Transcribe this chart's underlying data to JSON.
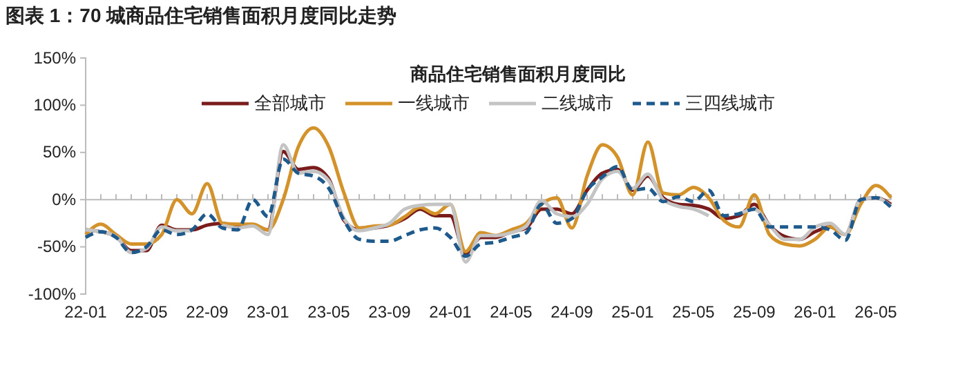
{
  "chart_data": {
    "type": "line",
    "title": "图表 1：70 城商品住宅销售面积月度同比走势",
    "subtitle": "商品住宅销售面积月度同比",
    "categories": [
      "22-01",
      null,
      null,
      null,
      "22-05",
      null,
      null,
      null,
      "22-09",
      null,
      null,
      null,
      "23-01",
      null,
      null,
      null,
      "23-05",
      null,
      null,
      null,
      "23-09",
      null,
      null,
      null,
      "24-01",
      null,
      null,
      null,
      "24-05",
      null,
      null,
      null,
      "24-09",
      null,
      null,
      null,
      "25-01",
      null,
      null,
      null,
      "25-05",
      null,
      null,
      null,
      "25-09",
      null,
      null,
      null,
      "26-01",
      null,
      null,
      null,
      "26-05",
      null
    ],
    "series": [
      {
        "name": "全部城市",
        "color": "#7b1c1c",
        "line_style": "solid",
        "values": [
          -32,
          -34,
          -39,
          -54,
          -54,
          -27,
          -32,
          -32,
          -27,
          -25,
          -29,
          -27,
          -32,
          51,
          32,
          34,
          22,
          -22,
          -32,
          -30,
          -27,
          -20,
          -10,
          -17,
          -17,
          -58,
          -40,
          -40,
          -34,
          -30,
          -10,
          -10,
          -15,
          10,
          28,
          32,
          10,
          25,
          2,
          -5,
          -6,
          -10,
          -20,
          -17,
          -5,
          -27,
          -39,
          -42,
          -34,
          -29,
          -37,
          0,
          2,
          -5
        ]
      },
      {
        "name": "一线城市",
        "color": "#d4922a",
        "line_style": "solid",
        "values": [
          -37,
          -26,
          -37,
          -47,
          -47,
          -37,
          0,
          -15,
          17,
          -25,
          -26,
          -26,
          -32,
          0,
          56,
          76,
          56,
          7,
          -30,
          -28,
          -27,
          -18,
          -8,
          -15,
          -5,
          -55,
          -35,
          -38,
          -32,
          -25,
          -5,
          2,
          -30,
          25,
          58,
          45,
          5,
          61,
          7,
          5,
          13,
          2,
          -22,
          -29,
          5,
          -37,
          -47,
          -49,
          -42,
          -29,
          -37,
          -5,
          15,
          2
        ]
      },
      {
        "name": "二线城市",
        "color": "#c4c4c4",
        "line_style": "solid",
        "values": [
          -32,
          -34,
          -39,
          -56,
          -52,
          -29,
          -33,
          -33,
          null,
          -27,
          -30,
          -28,
          -37,
          58,
          28,
          30,
          20,
          -20,
          -33,
          -30,
          -25,
          -10,
          -6,
          -5,
          -5,
          -66,
          -38,
          -38,
          -35,
          -28,
          -1,
          -15,
          -18,
          -5,
          22,
          30,
          12,
          27,
          0,
          -7,
          -10,
          -17,
          null,
          -15,
          -10,
          -27,
          -42,
          -42,
          -29,
          -25,
          -37,
          0,
          2,
          -7
        ]
      },
      {
        "name": "三四线城市",
        "color": "#1f5a8c",
        "line_style": "dashed",
        "values": [
          -40,
          -34,
          -40,
          -56,
          -50,
          -32,
          -37,
          -32,
          -15,
          -30,
          -32,
          0,
          -18,
          43,
          28,
          25,
          12,
          -22,
          -42,
          -44,
          -44,
          -38,
          -32,
          -30,
          -40,
          -60,
          -47,
          -45,
          -40,
          -35,
          -5,
          -25,
          -20,
          10,
          24,
          35,
          10,
          12,
          -2,
          3,
          -2,
          10,
          -17,
          -15,
          -10,
          -29,
          -29,
          -29,
          -29,
          -32,
          -43,
          0,
          2,
          -8
        ]
      }
    ],
    "ylim": [
      -100,
      150
    ],
    "yticks": [
      {
        "value": -100,
        "label": "-100%"
      },
      {
        "value": -50,
        "label": "-50%"
      },
      {
        "value": 0,
        "label": "0%"
      },
      {
        "value": 50,
        "label": "50%"
      },
      {
        "value": 100,
        "label": "100%"
      },
      {
        "value": 150,
        "label": "150%"
      }
    ],
    "ref_lines": [
      {
        "axis": "y",
        "value": 0,
        "color": "#bbbbbb"
      }
    ],
    "legend": "top",
    "grid": false,
    "marker": "none"
  }
}
